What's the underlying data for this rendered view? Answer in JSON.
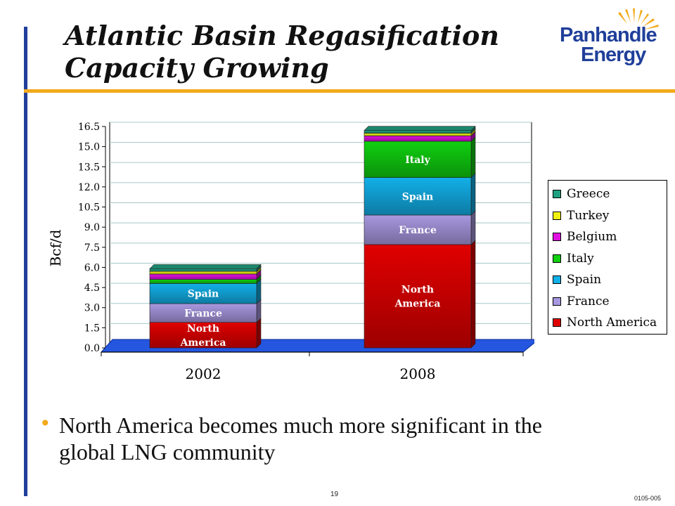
{
  "slide": {
    "title_line1": "Atlantic Basin Regasification",
    "title_line2": "Capacity Growing",
    "logo_line1": "Panhandle",
    "logo_line2": "Energy",
    "bullet": "North America becomes much more significant in the global LNG community",
    "page_number": "19",
    "doc_code": "0105-005"
  },
  "colors": {
    "accent_orange": "#f2ab1b",
    "rule_blue": "#1f3f9a"
  },
  "chart_data": {
    "type": "bar",
    "stacked": true,
    "title": "",
    "xlabel": "",
    "ylabel": "Bcf/d",
    "ylim": [
      0,
      16.5
    ],
    "yticks": [
      "0.0",
      "1.5",
      "3.0",
      "4.5",
      "6.0",
      "7.5",
      "9.0",
      "10.5",
      "12.0",
      "13.5",
      "15.0",
      "16.5"
    ],
    "categories": [
      "2002",
      "2008"
    ],
    "grid": true,
    "legend_position": "right",
    "series": [
      {
        "name": "North America",
        "color": "#e00000",
        "values": [
          1.9,
          7.7
        ],
        "labels": [
          "North America",
          "North America"
        ]
      },
      {
        "name": "France",
        "color": "#a898e0",
        "values": [
          1.4,
          2.2
        ],
        "labels": [
          "France",
          "France"
        ]
      },
      {
        "name": "Spain",
        "color": "#12b0e8",
        "values": [
          1.5,
          2.8
        ],
        "labels": [
          "Spain",
          "Spain"
        ]
      },
      {
        "name": "Italy",
        "color": "#10d010",
        "values": [
          0.3,
          2.7
        ],
        "labels": [
          "",
          "Italy"
        ]
      },
      {
        "name": "Belgium",
        "color": "#e010e0",
        "values": [
          0.4,
          0.4
        ],
        "labels": [
          "",
          ""
        ]
      },
      {
        "name": "Turkey",
        "color": "#f0f010",
        "values": [
          0.2,
          0.2
        ],
        "labels": [
          "",
          ""
        ]
      },
      {
        "name": "Greece",
        "color": "#20a080",
        "values": [
          0.2,
          0.2
        ],
        "labels": [
          "",
          ""
        ]
      }
    ],
    "legend_order": [
      "Greece",
      "Turkey",
      "Belgium",
      "Italy",
      "Spain",
      "France",
      "North America"
    ]
  }
}
